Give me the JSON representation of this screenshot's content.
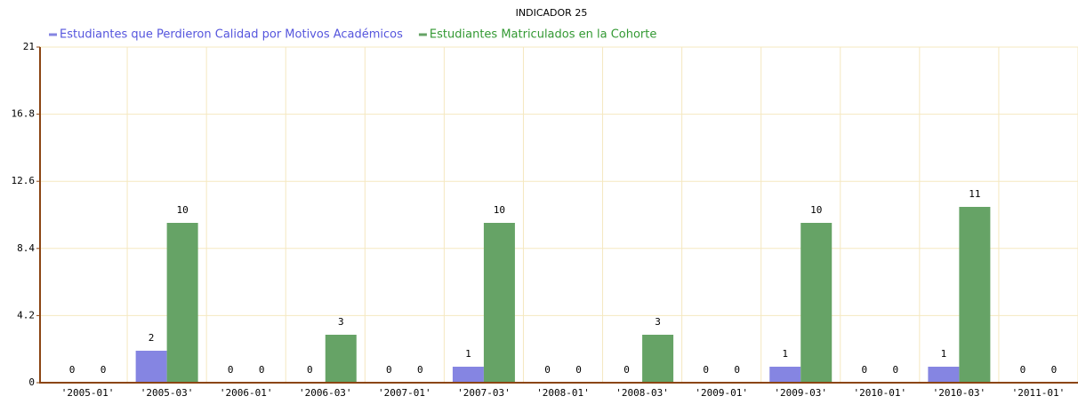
{
  "chart_data": {
    "type": "bar",
    "title": "INDICADOR 25",
    "categories": [
      "'2005-01'",
      "'2005-03'",
      "'2006-01'",
      "'2006-03'",
      "'2007-01'",
      "'2007-03'",
      "'2008-01'",
      "'2008-03'",
      "'2009-01'",
      "'2009-03'",
      "'2010-01'",
      "'2010-03'",
      "'2011-01'"
    ],
    "series": [
      {
        "name": "Estudiantes que Perdieron Calidad por Motivos Académicos",
        "color": "#8585e2",
        "values": [
          0,
          2,
          0,
          0,
          0,
          1,
          0,
          0,
          0,
          1,
          0,
          1,
          0
        ]
      },
      {
        "name": "Estudiantes Matriculados en la Cohorte",
        "color": "#66a366",
        "values": [
          0,
          10,
          0,
          3,
          0,
          10,
          0,
          3,
          0,
          10,
          0,
          11,
          0
        ]
      }
    ],
    "ylim": [
      0,
      21
    ],
    "yticks": [
      0,
      4.2,
      8.4,
      12.6,
      16.8,
      21
    ],
    "grid": true,
    "legend": "top-left"
  }
}
